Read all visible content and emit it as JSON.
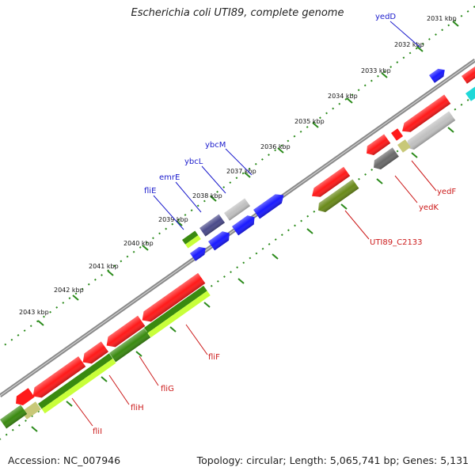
{
  "title": "Escherichia coli UTI89, complete genome",
  "footer": {
    "accession": "Accession: NC_007946",
    "topology": "Topology: circular; Length: 5,065,741 bp; Genes: 5,131"
  },
  "colors": {
    "backbone": "#8a8a8a",
    "ticks": "#2a8a1a",
    "red": "#ff1a1a",
    "blue": "#1a1aff",
    "darkgreen": "#3a8a10",
    "lightgreen": "#c8ff3a",
    "gray": "#c0c0c0",
    "darkgray": "#6a6a6a",
    "navy": "#4a4a8a",
    "olive": "#6a8a1a",
    "khaki": "#c8c878",
    "cyan": "#20d8d8",
    "label_blue": "#1a1acc",
    "label_red": "#cc1a1a"
  },
  "kbp_labels": [
    "2031 kbp",
    "2032 kbp",
    "2033 kbp",
    "2034 kbp",
    "2035 kbp",
    "2036 kbp",
    "2037 kbp",
    "2038 kbp",
    "2039 kbp",
    "2040 kbp",
    "2041 kbp",
    "2042 kbp",
    "2043 kbp"
  ],
  "gene_labels": {
    "yedD": "yedD",
    "ybcM": "ybcM",
    "ybcL": "ybcL",
    "emrE": "emrE",
    "fliE": "fliE",
    "yedF": "yedF",
    "yedK": "yedK",
    "UTI89_C2133": "UTI89_C2133",
    "fliF": "fliF",
    "fliG": "fliG",
    "fliH": "fliH",
    "fliI": "fliI"
  }
}
